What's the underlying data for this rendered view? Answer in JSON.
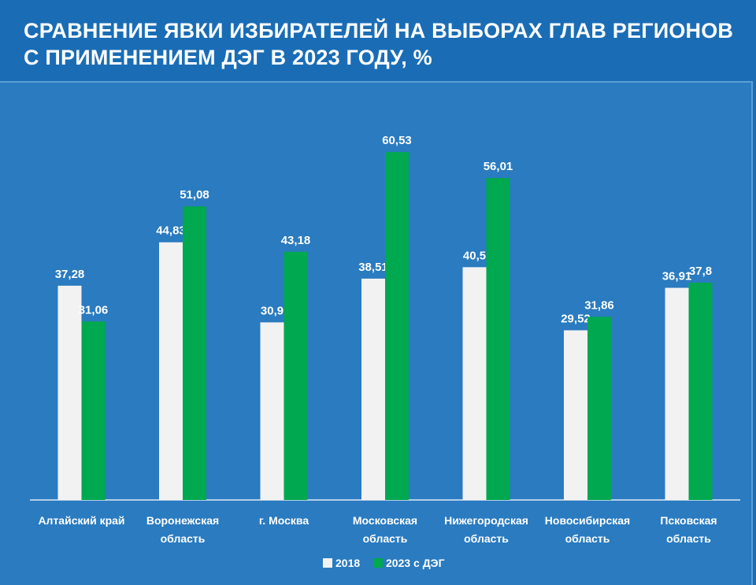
{
  "chart_data": {
    "type": "bar",
    "title_lines": [
      "СРАВНЕНИЕ ЯВКИ ИЗБИРАТЕЛЕЙ НА ВЫБОРАХ ГЛАВ РЕГИОНОВ",
      "С ПРИМЕНЕНИЕМ ДЭГ В 2023 ГОДУ, %"
    ],
    "categories": [
      [
        "Алтайский край"
      ],
      [
        "Воронежская",
        "область"
      ],
      [
        "г. Москва"
      ],
      [
        "Московская",
        "область"
      ],
      [
        "Нижегородская",
        "область"
      ],
      [
        "Новосибирская",
        "область"
      ],
      [
        "Псковская",
        "область"
      ]
    ],
    "series": [
      {
        "name": "2018",
        "color": "#f2f2f2",
        "values": [
          37.28,
          44.83,
          30.9,
          38.51,
          40.5,
          29.52,
          36.91
        ],
        "labels": [
          "37,28",
          "44,83",
          "30,9",
          "38,51",
          "40,5",
          "29,52",
          "36,91"
        ]
      },
      {
        "name": "2023 с ДЭГ",
        "color": "#00a84f",
        "values": [
          31.06,
          51.08,
          43.18,
          60.53,
          56.01,
          31.86,
          37.8
        ],
        "labels": [
          "31,06",
          "51,08",
          "43,18",
          "60,53",
          "56,01",
          "31,86",
          "37,8"
        ]
      }
    ],
    "ylim": [
      0,
      75
    ],
    "grid": false,
    "legend_position": "bottom-center",
    "colors": {
      "background": "#1a6db5",
      "panel": "#2a7bc0",
      "axis": "#dfe9f3"
    }
  }
}
